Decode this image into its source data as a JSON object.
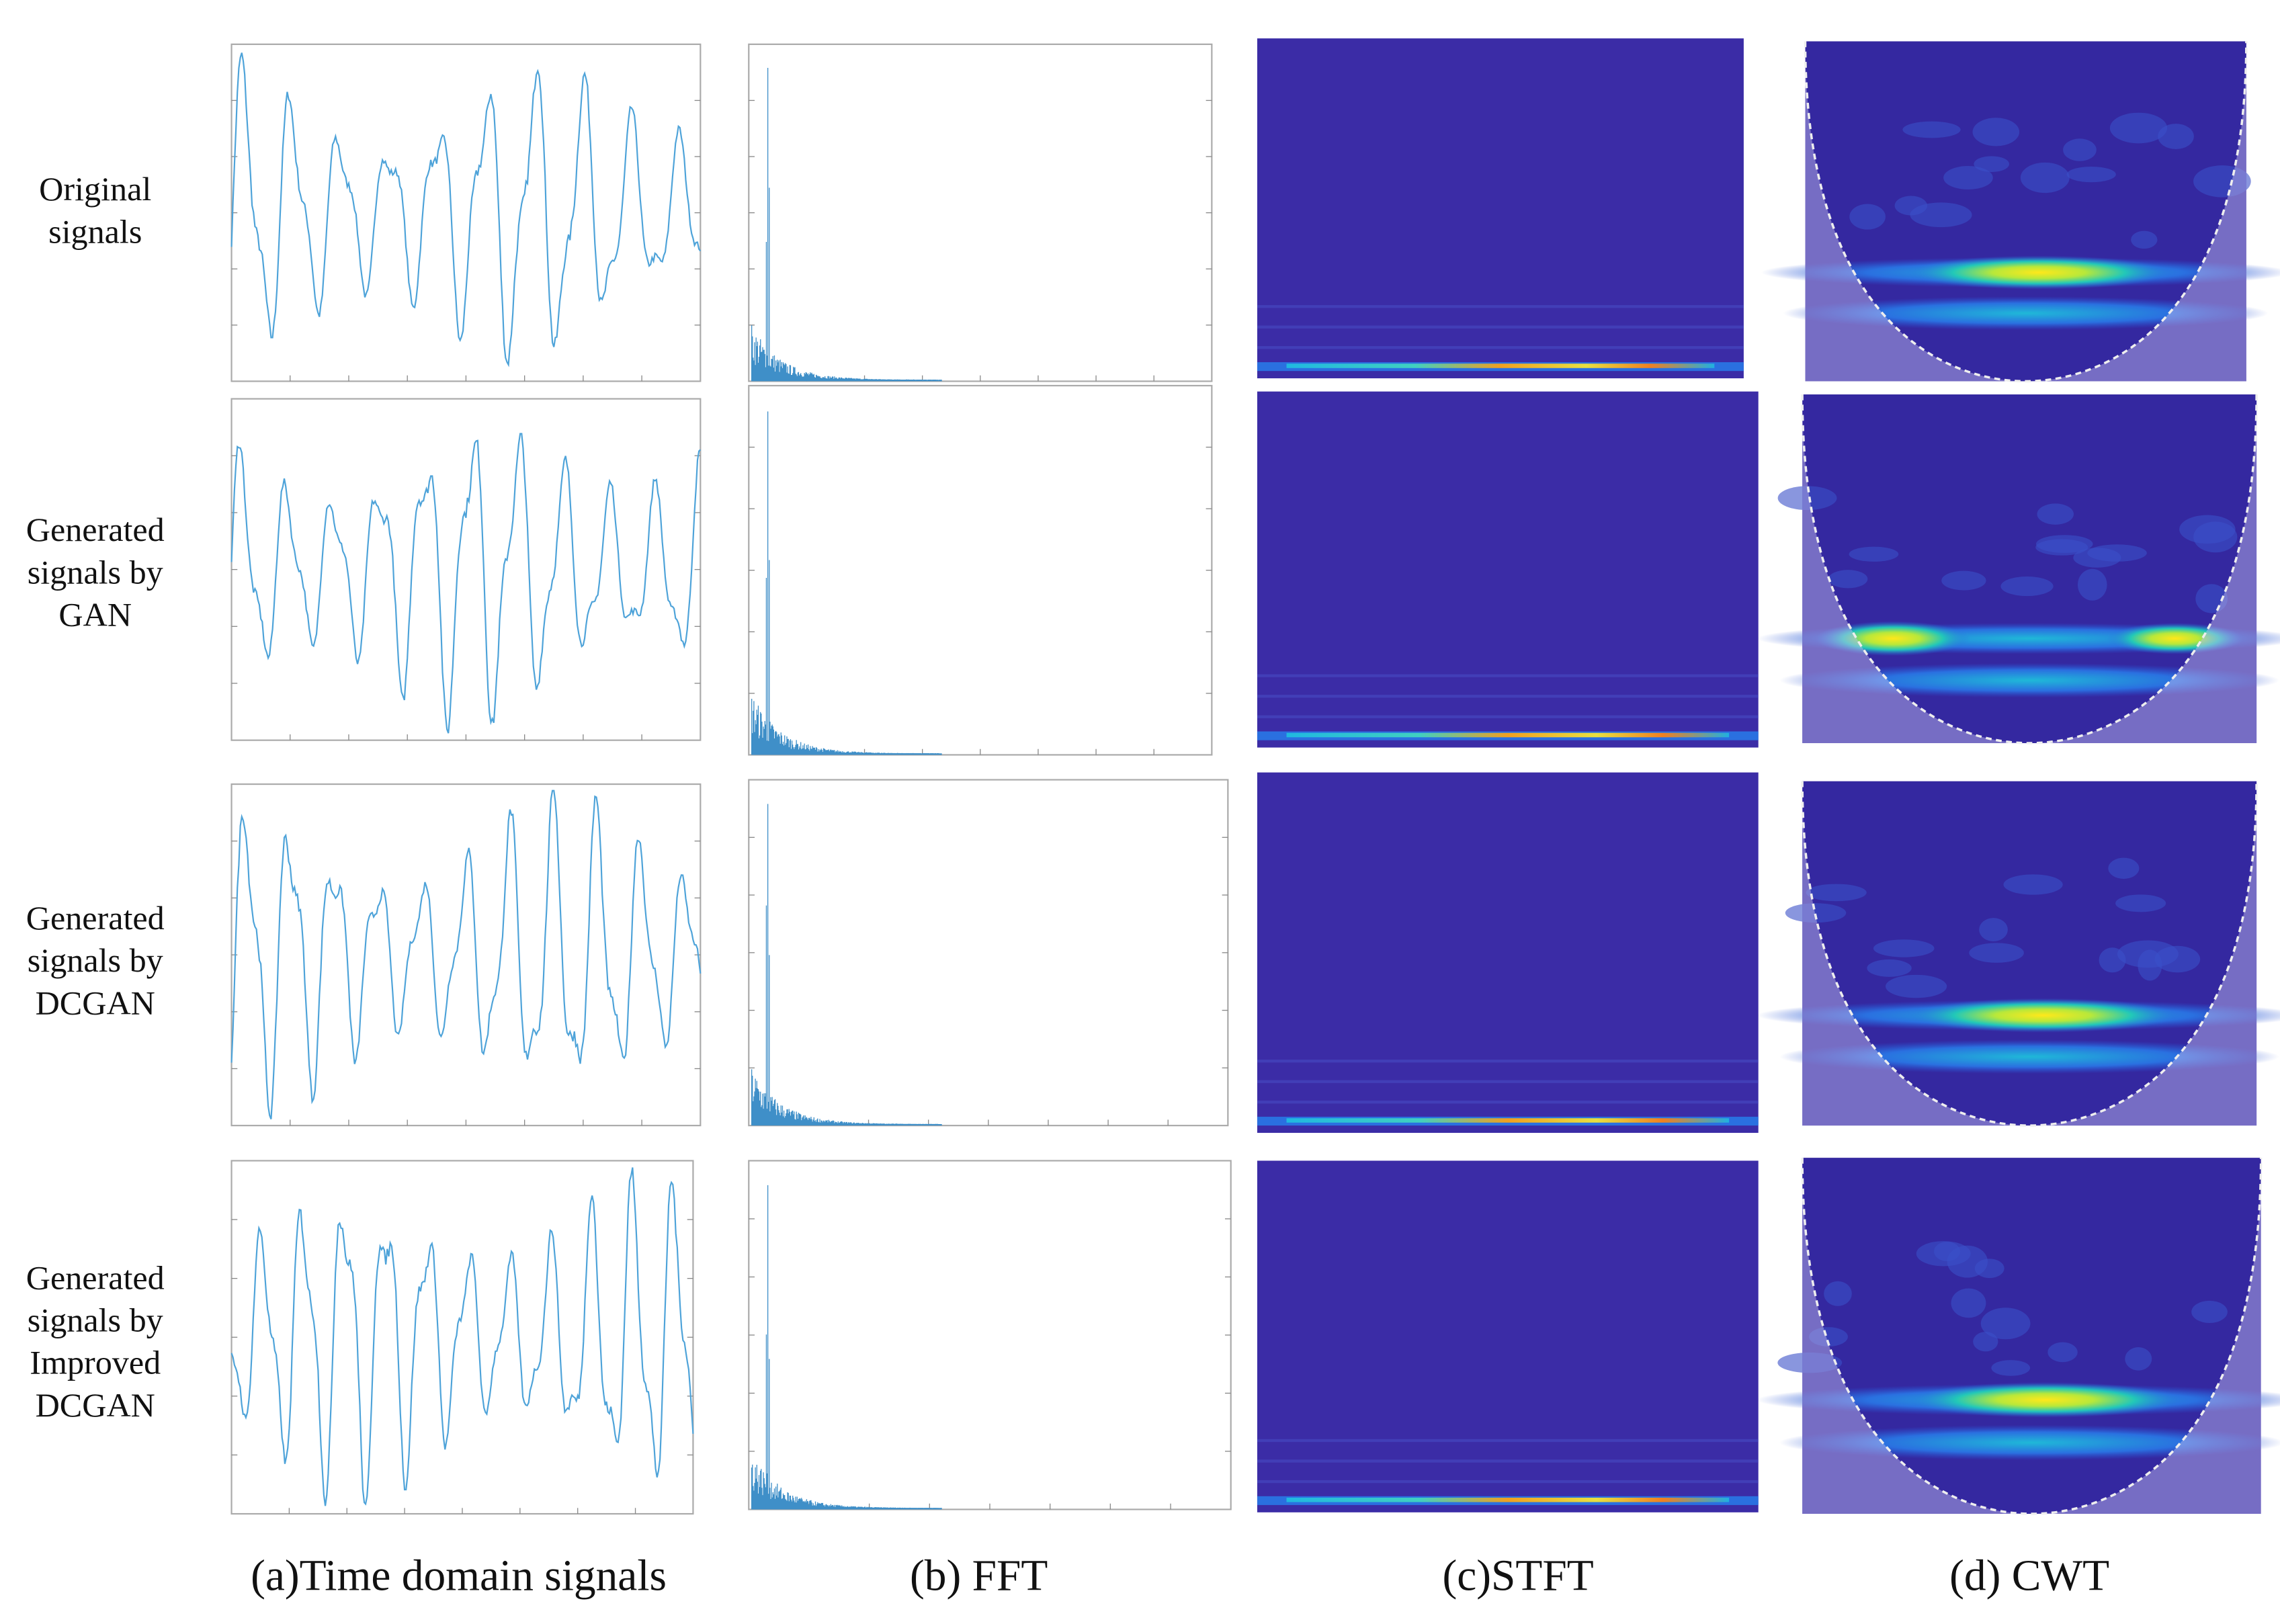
{
  "rows": [
    {
      "label_lines": [
        "Original",
        "signals"
      ]
    },
    {
      "label_lines": [
        "Generated",
        "signals by",
        "GAN"
      ]
    },
    {
      "label_lines": [
        "Generated",
        "signals by",
        "DCGAN"
      ]
    },
    {
      "label_lines": [
        "Generated",
        "signals by",
        "Improved",
        "DCGAN"
      ]
    }
  ],
  "columns": [
    {
      "label": "(a)Time domain signals"
    },
    {
      "label": "(b) FFT"
    },
    {
      "label": "(c)STFT"
    },
    {
      "label": "(d) CWT"
    }
  ]
}
